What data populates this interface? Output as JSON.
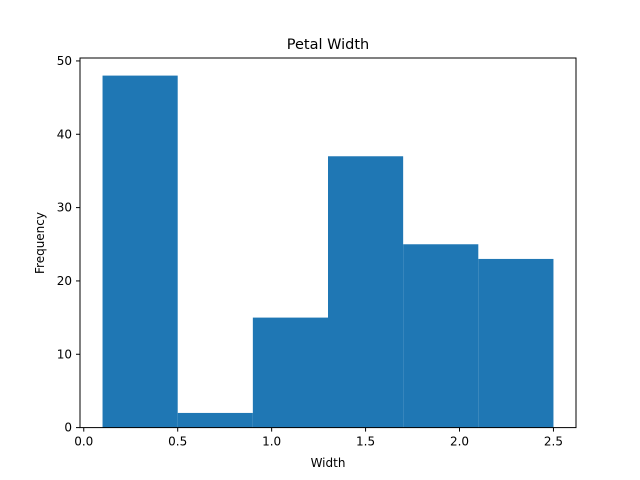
{
  "chart_data": {
    "type": "bar",
    "title": "Petal Width",
    "xlabel": "Width",
    "ylabel": "Frequency",
    "bins": [
      {
        "x0": 0.1,
        "x1": 0.5,
        "count": 48
      },
      {
        "x0": 0.5,
        "x1": 0.9,
        "count": 2
      },
      {
        "x0": 0.9,
        "x1": 1.3,
        "count": 15
      },
      {
        "x0": 1.3,
        "x1": 1.7,
        "count": 37
      },
      {
        "x0": 1.7,
        "x1": 2.1,
        "count": 25
      },
      {
        "x0": 2.1,
        "x1": 2.5,
        "count": 23
      }
    ],
    "xlim": [
      -0.02,
      2.62
    ],
    "ylim": [
      0,
      50.4
    ],
    "xticks": [
      0.0,
      0.5,
      1.0,
      1.5,
      2.0,
      2.5
    ],
    "xtick_labels": [
      "0.0",
      "0.5",
      "1.0",
      "1.5",
      "2.0",
      "2.5"
    ],
    "yticks": [
      0,
      10,
      20,
      30,
      40,
      50
    ],
    "ytick_labels": [
      "0",
      "10",
      "20",
      "30",
      "40",
      "50"
    ],
    "bar_color": "#1f77b4",
    "grid": false,
    "legend": "none"
  }
}
